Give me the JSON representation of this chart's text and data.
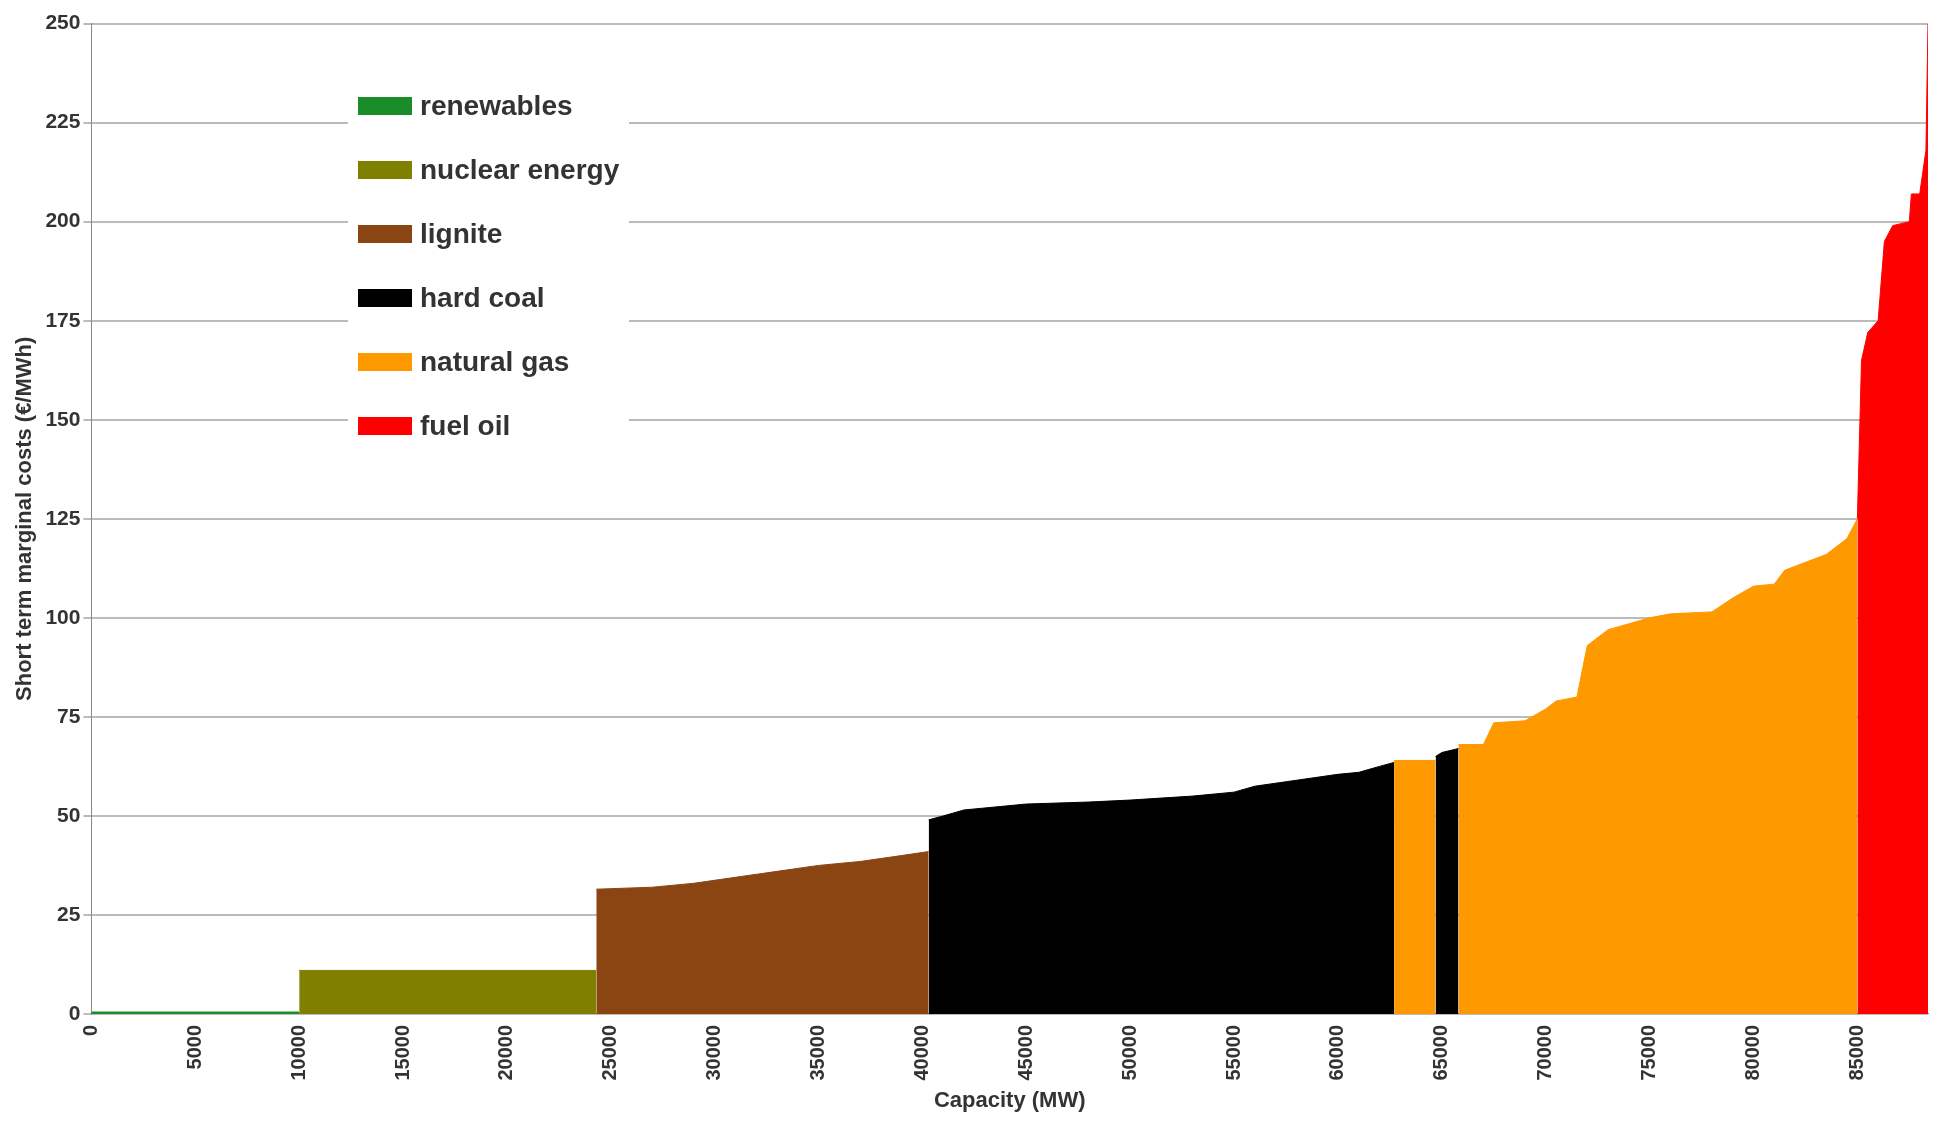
{
  "chart_data": {
    "type": "area",
    "xlabel": "Capacity (MW)",
    "ylabel": "Short term marginal costs (€/MWh)",
    "xlim": [
      0,
      88400
    ],
    "xticks": [
      0,
      5000,
      10000,
      15000,
      20000,
      25000,
      30000,
      35000,
      40000,
      45000,
      50000,
      55000,
      60000,
      65000,
      70000,
      75000,
      80000,
      85000
    ],
    "ylim": [
      0,
      250
    ],
    "yticks": [
      0,
      25,
      50,
      75,
      100,
      125,
      150,
      175,
      200,
      225,
      250
    ],
    "grid": "y",
    "legend": "top left",
    "series": [
      {
        "name": "renewables",
        "color": "#1a8c2a",
        "x": [
          0,
          10000
        ],
        "values": [
          0.5,
          0.5
        ]
      },
      {
        "name": "nuclear energy",
        "color": "#808000",
        "x": [
          10000,
          24300
        ],
        "values": [
          11,
          11
        ]
      },
      {
        "name": "lignite",
        "color": "#8b4513",
        "x": [
          24300,
          27000,
          29000,
          31000,
          33000,
          35000,
          37000,
          39000,
          40300
        ],
        "values": [
          31.5,
          32,
          33,
          34.5,
          36,
          37.5,
          38.5,
          40,
          41
        ]
      },
      {
        "name": "hard coal",
        "color": "#000000",
        "x": [
          40300,
          41000,
          42000,
          44000,
          45000,
          48000,
          50000,
          53000,
          55000,
          56000,
          58000,
          60000,
          61000,
          62000,
          62700,
          62701,
          64700,
          65000,
          65800
        ],
        "values": [
          49,
          50,
          51.5,
          52.5,
          53,
          53.5,
          54,
          55,
          56,
          57.5,
          59,
          60.5,
          61,
          62.5,
          63.5,
          null,
          65,
          66,
          67
        ]
      },
      {
        "name": "natural gas",
        "color": "#ff9900",
        "x": [
          62700,
          64700,
          64701,
          65800,
          67000,
          67500,
          69000,
          70000,
          70500,
          71500,
          72000,
          73000,
          74000,
          75000,
          76000,
          78000,
          79000,
          80000,
          81000,
          81500,
          82500,
          83500,
          84500,
          85000
        ],
        "values": [
          64,
          64,
          null,
          68,
          68,
          73.5,
          74,
          77,
          79,
          80,
          93,
          97,
          98.5,
          100,
          101,
          101.5,
          105,
          108,
          108.5,
          112,
          114,
          116,
          120,
          125
        ]
      },
      {
        "name": "fuel oil",
        "color": "#ff0000",
        "x": [
          85000,
          85200,
          85500,
          86000,
          86300,
          86700,
          87500,
          87600,
          88000,
          88300,
          88400
        ],
        "values": [
          125,
          165,
          172,
          175,
          195,
          199,
          200,
          207,
          207,
          218,
          250
        ]
      }
    ]
  }
}
